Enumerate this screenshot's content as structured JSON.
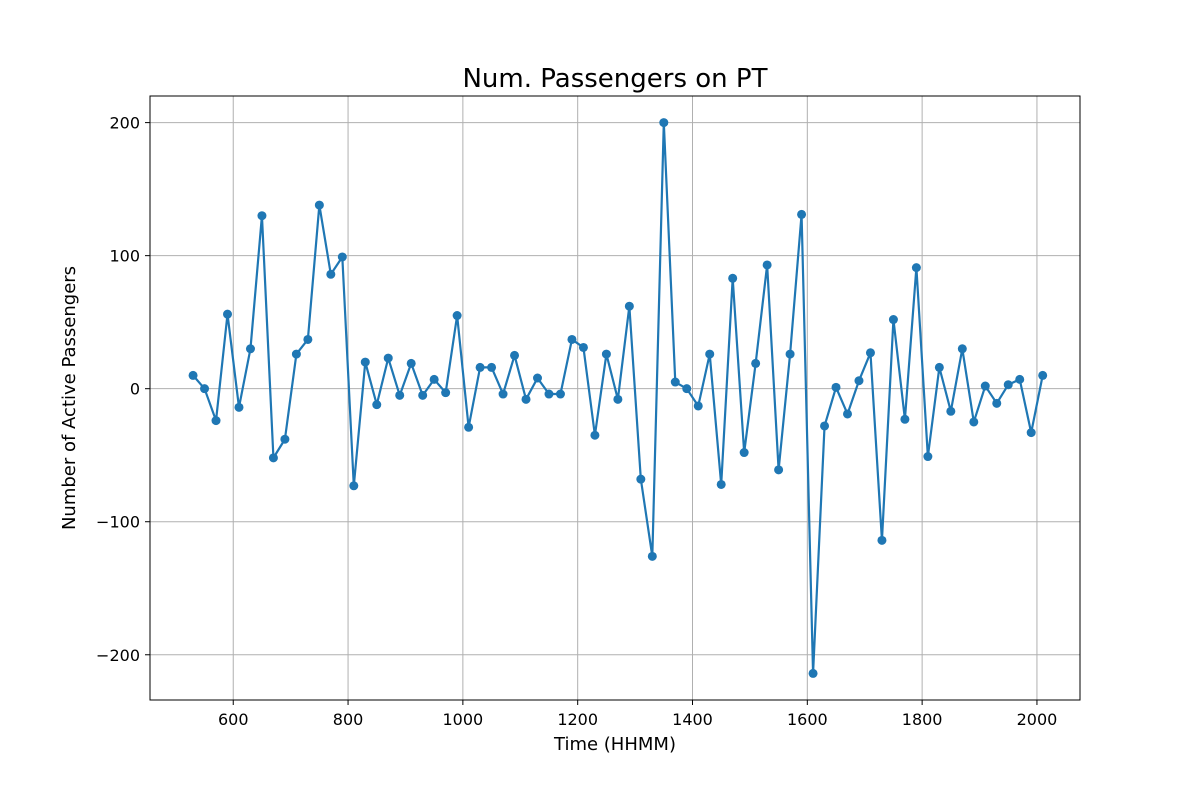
{
  "chart_data": {
    "type": "line",
    "title": "Num. Passengers on PT",
    "xlabel": "Time (HHMM)",
    "ylabel": "Number of Active Passengers",
    "xlim": [
      455,
      2075
    ],
    "ylim": [
      -234,
      220
    ],
    "xticks": [
      600,
      800,
      1000,
      1200,
      1400,
      1600,
      1800,
      2000
    ],
    "yticks": [
      -200,
      -100,
      0,
      100,
      200
    ],
    "ytick_labels": [
      "−200",
      "−100",
      "0",
      "100",
      "200"
    ],
    "grid": true,
    "legend": "none",
    "series": [
      {
        "color": "#1f77b4",
        "marker": "circle",
        "x": [
          530,
          550,
          570,
          590,
          610,
          630,
          650,
          670,
          690,
          710,
          730,
          750,
          770,
          790,
          810,
          830,
          850,
          870,
          890,
          910,
          930,
          950,
          970,
          990,
          1010,
          1030,
          1050,
          1070,
          1090,
          1110,
          1130,
          1150,
          1170,
          1190,
          1210,
          1230,
          1250,
          1270,
          1290,
          1310,
          1330,
          1350,
          1370,
          1390,
          1410,
          1430,
          1450,
          1470,
          1490,
          1510,
          1530,
          1550,
          1570,
          1590,
          1610,
          1630,
          1650,
          1670,
          1690,
          1710,
          1730,
          1750,
          1770,
          1790,
          1810,
          1830,
          1850,
          1870,
          1890,
          1910,
          1930,
          1950,
          1970,
          1990,
          2010
        ],
        "y": [
          10,
          0,
          -24,
          56,
          -14,
          30,
          130,
          -52,
          -38,
          26,
          37,
          138,
          86,
          99,
          -73,
          20,
          -12,
          23,
          -5,
          19,
          -5,
          7,
          -3,
          55,
          -29,
          16,
          16,
          -4,
          25,
          -8,
          8,
          -4,
          -4,
          37,
          31,
          -35,
          26,
          -8,
          62,
          -68,
          -126,
          200,
          5,
          0,
          -13,
          26,
          -72,
          83,
          -48,
          19,
          93,
          -61,
          26,
          131,
          -214,
          -28,
          1,
          -19,
          6,
          27,
          -114,
          52,
          -23,
          91,
          -51,
          16,
          -17,
          30,
          -25,
          2,
          -11,
          3,
          7,
          -33,
          10
        ]
      }
    ]
  }
}
